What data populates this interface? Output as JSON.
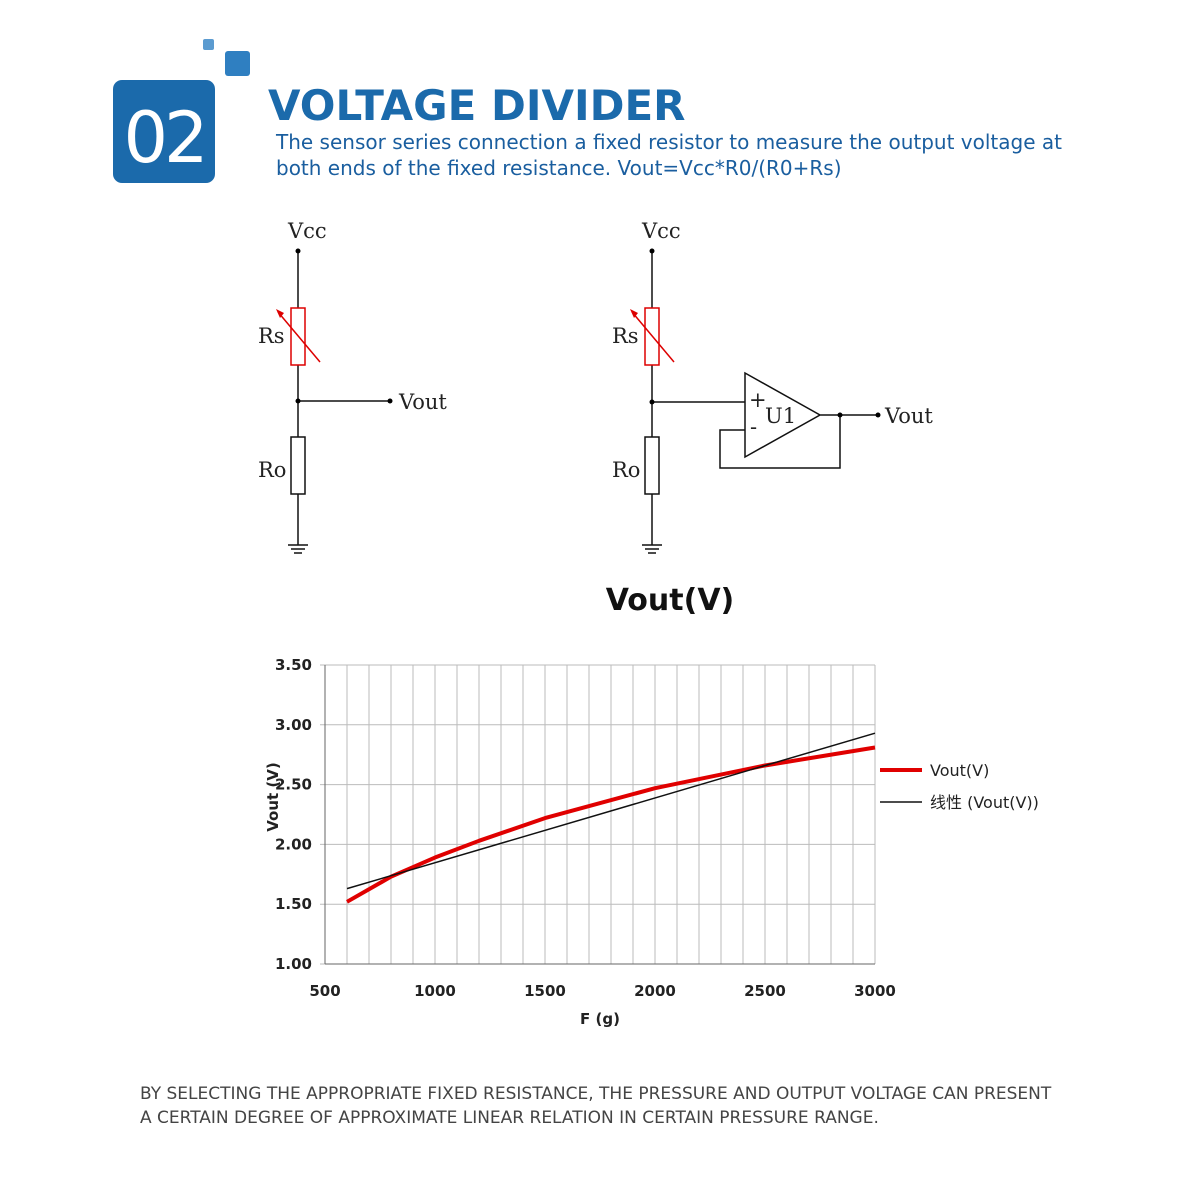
{
  "header": {
    "number": "02",
    "title": "VOLTAGE DIVIDER",
    "description": [
      "The sensor series connection a fixed resistor to measure the output voltage at",
      "both ends of the fixed resistance. Vout=Vcc*R0/(R0+Rs)"
    ]
  },
  "circuits": [
    {
      "supply": "Vcc",
      "sensor": "Rs",
      "fixed": "Ro",
      "output": "Vout"
    },
    {
      "supply": "Vcc",
      "sensor": "Rs",
      "fixed": "Ro",
      "output": "Vout",
      "amplifier": "U1",
      "plus": "+",
      "minus": "-"
    }
  ],
  "chart_data": {
    "type": "line",
    "title": "Vout(V)",
    "xlabel": "F (g)",
    "ylabel": "Vout (V)",
    "xlim": [
      500,
      3000
    ],
    "xticks": [
      500,
      1000,
      1500,
      2000,
      2500,
      3000
    ],
    "ylim": [
      1,
      3.5
    ],
    "yticks": [
      {
        "value": 1,
        "label": "1.00"
      },
      {
        "value": 1.5,
        "label": "1.50"
      },
      {
        "value": 2,
        "label": "2.00"
      },
      {
        "value": 2.5,
        "label": "2.50"
      },
      {
        "value": 3,
        "label": "3.00"
      },
      {
        "value": 3.5,
        "label": "3.50"
      }
    ],
    "grid": true,
    "legend": "right",
    "series": [
      {
        "name": "Vout(V)",
        "color": "#e00000",
        "width": 4,
        "x": [
          600,
          800,
          1000,
          1200,
          1500,
          2000,
          2500,
          3000
        ],
        "values": [
          1.52,
          1.73,
          1.89,
          2.03,
          2.22,
          2.47,
          2.66,
          2.81
        ]
      },
      {
        "name": "线性 (Vout(V))",
        "color": "#111111",
        "width": 1.5,
        "x": [
          600,
          3000
        ],
        "values": [
          1.63,
          2.93
        ]
      }
    ]
  },
  "footer": [
    "BY SELECTING THE APPROPRIATE FIXED RESISTANCE, THE PRESSURE AND OUTPUT VOLTAGE CAN PRESENT",
    "A CERTAIN DEGREE OF APPROXIMATE LINEAR RELATION IN CERTAIN PRESSURE RANGE."
  ]
}
